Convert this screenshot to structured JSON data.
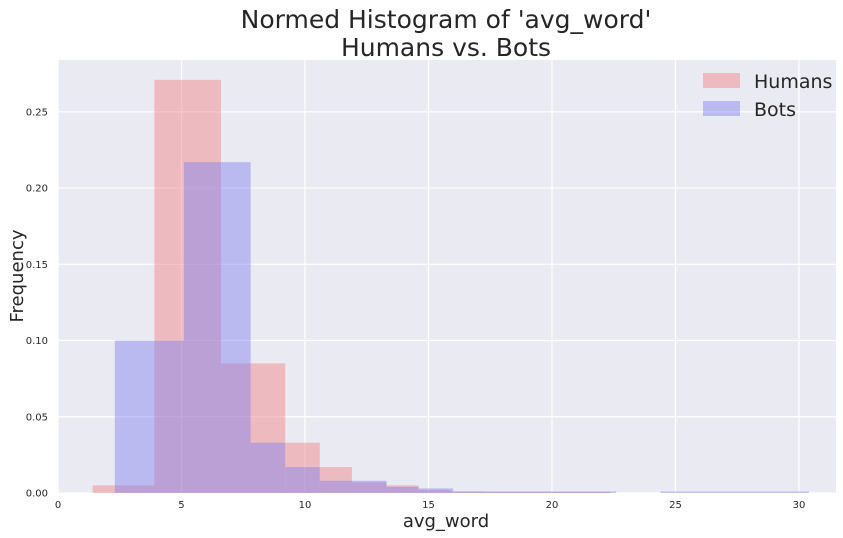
{
  "chart_data": {
    "type": "bar",
    "title": [
      "Normed Histogram of 'avg_word'",
      "Humans vs. Bots"
    ],
    "xlabel": "avg_word",
    "ylabel": "Frequency",
    "xlim": [
      0,
      31.5
    ],
    "ylim": [
      0,
      0.284
    ],
    "x_ticks": [
      0,
      5,
      10,
      15,
      20,
      25,
      30
    ],
    "y_ticks": [
      0.0,
      0.05,
      0.1,
      0.15,
      0.2,
      0.25
    ],
    "y_tick_labels": [
      "0.00",
      "0.05",
      "0.10",
      "0.15",
      "0.20",
      "0.25"
    ],
    "grid": true,
    "legend_position": "top-right",
    "series": [
      {
        "name": "Humans",
        "color": "#f08080",
        "opacity": 0.45,
        "bins": [
          [
            1.4,
            3.9,
            0.005
          ],
          [
            3.9,
            6.6,
            0.271
          ],
          [
            6.6,
            9.2,
            0.085
          ],
          [
            9.2,
            10.6,
            0.033
          ],
          [
            10.6,
            11.9,
            0.017
          ],
          [
            11.9,
            13.3,
            0.007
          ],
          [
            13.3,
            14.6,
            0.005
          ],
          [
            14.6,
            15.9,
            0.002
          ],
          [
            15.9,
            17.3,
            0.001
          ],
          [
            17.3,
            22.4,
            0.0007
          ]
        ]
      },
      {
        "name": "Bots",
        "color": "#8080f0",
        "opacity": 0.45,
        "bins": [
          [
            2.3,
            4.0,
            0.1
          ],
          [
            4.0,
            5.1,
            0.1
          ],
          [
            5.1,
            7.8,
            0.217
          ],
          [
            7.8,
            9.2,
            0.033
          ],
          [
            9.2,
            10.6,
            0.017
          ],
          [
            10.6,
            11.9,
            0.008
          ],
          [
            11.9,
            13.3,
            0.008
          ],
          [
            13.3,
            14.6,
            0.004
          ],
          [
            14.6,
            16.0,
            0.003
          ],
          [
            16.0,
            22.6,
            0.001
          ],
          [
            24.4,
            30.4,
            0.001
          ]
        ]
      }
    ]
  }
}
